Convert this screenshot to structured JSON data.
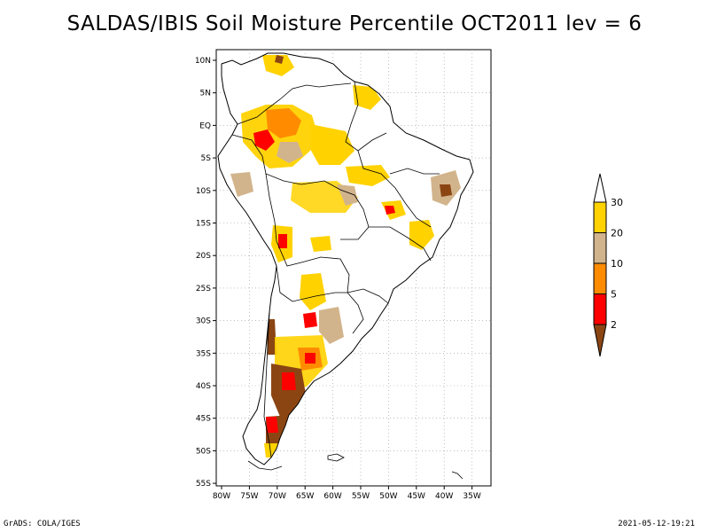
{
  "header": {
    "title": "SALDAS/IBIS Soil Moisture Percentile OCT2011 lev = 6"
  },
  "footer": {
    "left": "GrADS: COLA/IGES",
    "right": "2021-05-12-19:21"
  },
  "map": {
    "region": "South America",
    "variable": "Soil Moisture Percentile",
    "longitude_labels": [
      "80W",
      "75W",
      "70W",
      "65W",
      "60W",
      "55W",
      "50W",
      "45W",
      "40W",
      "35W"
    ],
    "latitude_labels": [
      "10N",
      "5N",
      "EQ",
      "5S",
      "10S",
      "15S",
      "20S",
      "25S",
      "30S",
      "35S",
      "40S",
      "45S",
      "50S",
      "55S"
    ],
    "colors": {
      "land_outline": "#000000",
      "gridline": "#999999",
      "ocean": "#ffffff"
    }
  },
  "legend": {
    "labels": [
      "30",
      "20",
      "10",
      "5",
      "2"
    ],
    "bins": [
      {
        "name": "above-30",
        "color": "#ffffff"
      },
      {
        "name": "20-30",
        "color": "#ffd200"
      },
      {
        "name": "10-20",
        "color": "#d2b48c"
      },
      {
        "name": "5-10",
        "color": "#ff8c00"
      },
      {
        "name": "2-5",
        "color": "#ff0000"
      },
      {
        "name": "below-2",
        "color": "#8b4513"
      }
    ]
  }
}
